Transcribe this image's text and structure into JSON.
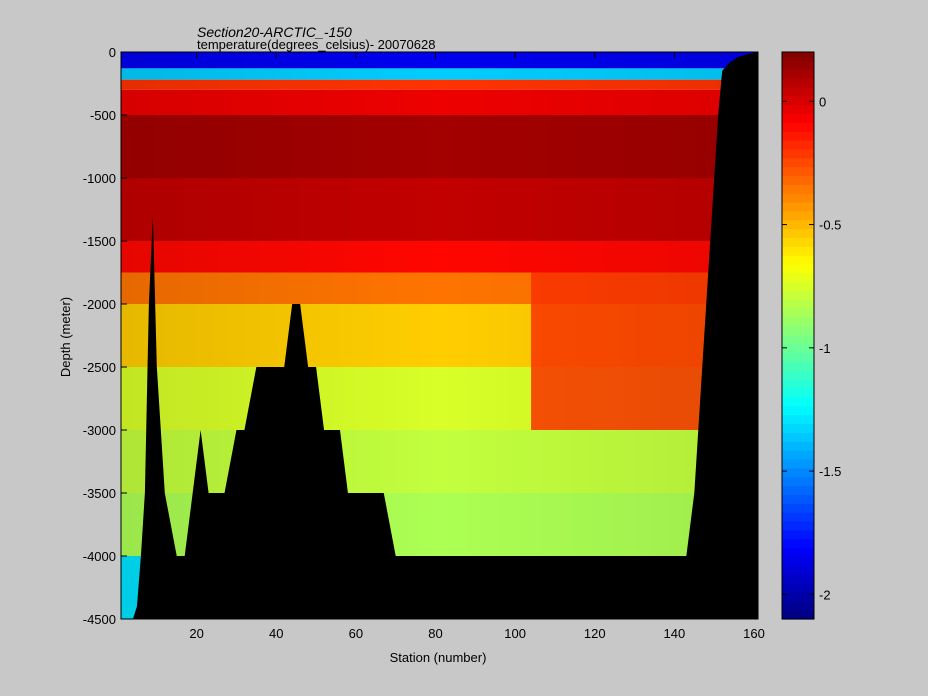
{
  "chart_data": {
    "type": "heatmap",
    "title": "Section20-ARCTIC_-150",
    "subtitle": "temperature(degrees_celsius)- 20070628",
    "xlabel": "Station (number)",
    "ylabel": "Depth (meter)",
    "xlim": [
      1,
      161
    ],
    "ylim": [
      -4500,
      0
    ],
    "x_ticks": [
      20,
      40,
      60,
      80,
      100,
      120,
      140,
      160
    ],
    "y_ticks": [
      0,
      -500,
      -1000,
      -1500,
      -2000,
      -2500,
      -3000,
      -3500,
      -4000,
      -4500
    ],
    "colorbar": {
      "range": [
        -2.1,
        0.2
      ],
      "ticks": [
        0,
        -0.5,
        -1,
        -1.5,
        -2
      ],
      "colormap": "jet"
    },
    "depth_layers": [
      {
        "top": 0,
        "bottom": -130,
        "temp": -1.85
      },
      {
        "top": -130,
        "bottom": -220,
        "temp": -1.35
      },
      {
        "top": -220,
        "bottom": -300,
        "temp": -0.2
      },
      {
        "top": -300,
        "bottom": -500,
        "temp": -0.05
      },
      {
        "top": -500,
        "bottom": -1000,
        "temp": 0.12
      },
      {
        "top": -1000,
        "bottom": -1500,
        "temp": 0.05
      },
      {
        "top": -1500,
        "bottom": -1750,
        "temp": -0.1
      },
      {
        "top": -1750,
        "bottom": -2000,
        "temp": -0.35
      },
      {
        "top": -2000,
        "bottom": -2500,
        "temp": -0.55
      },
      {
        "top": -2500,
        "bottom": -3000,
        "temp": -0.75
      },
      {
        "top": -3000,
        "bottom": -3500,
        "temp": -0.8
      },
      {
        "top": -3500,
        "bottom": -4000,
        "temp": -0.85
      },
      {
        "top": -4000,
        "bottom": -4500,
        "temp": -1.3
      }
    ],
    "warm_band_x": [
      104,
      150
    ],
    "bottom_depth": {
      "x": [
        1,
        4,
        5,
        6,
        7,
        8,
        9,
        10,
        12,
        15,
        17,
        19,
        21,
        23,
        25,
        27,
        30,
        32,
        35,
        38,
        42,
        44,
        46,
        48,
        50,
        52,
        56,
        58,
        63,
        67,
        70,
        104,
        106,
        143,
        145,
        147,
        149,
        151,
        152,
        154,
        156,
        158,
        160,
        161
      ],
      "depth": [
        -4500,
        -4500,
        -4400,
        -4000,
        -3500,
        -2000,
        -1300,
        -2500,
        -3500,
        -4000,
        -4000,
        -3500,
        -3000,
        -3500,
        -3500,
        -3500,
        -3000,
        -3000,
        -2500,
        -2500,
        -2500,
        -2000,
        -2000,
        -2500,
        -2500,
        -3000,
        -3000,
        -3500,
        -3500,
        -3500,
        -4000,
        -4000,
        -4000,
        -4000,
        -3500,
        -2500,
        -1500,
        -500,
        -150,
        -80,
        -40,
        -20,
        -10,
        0
      ]
    }
  }
}
